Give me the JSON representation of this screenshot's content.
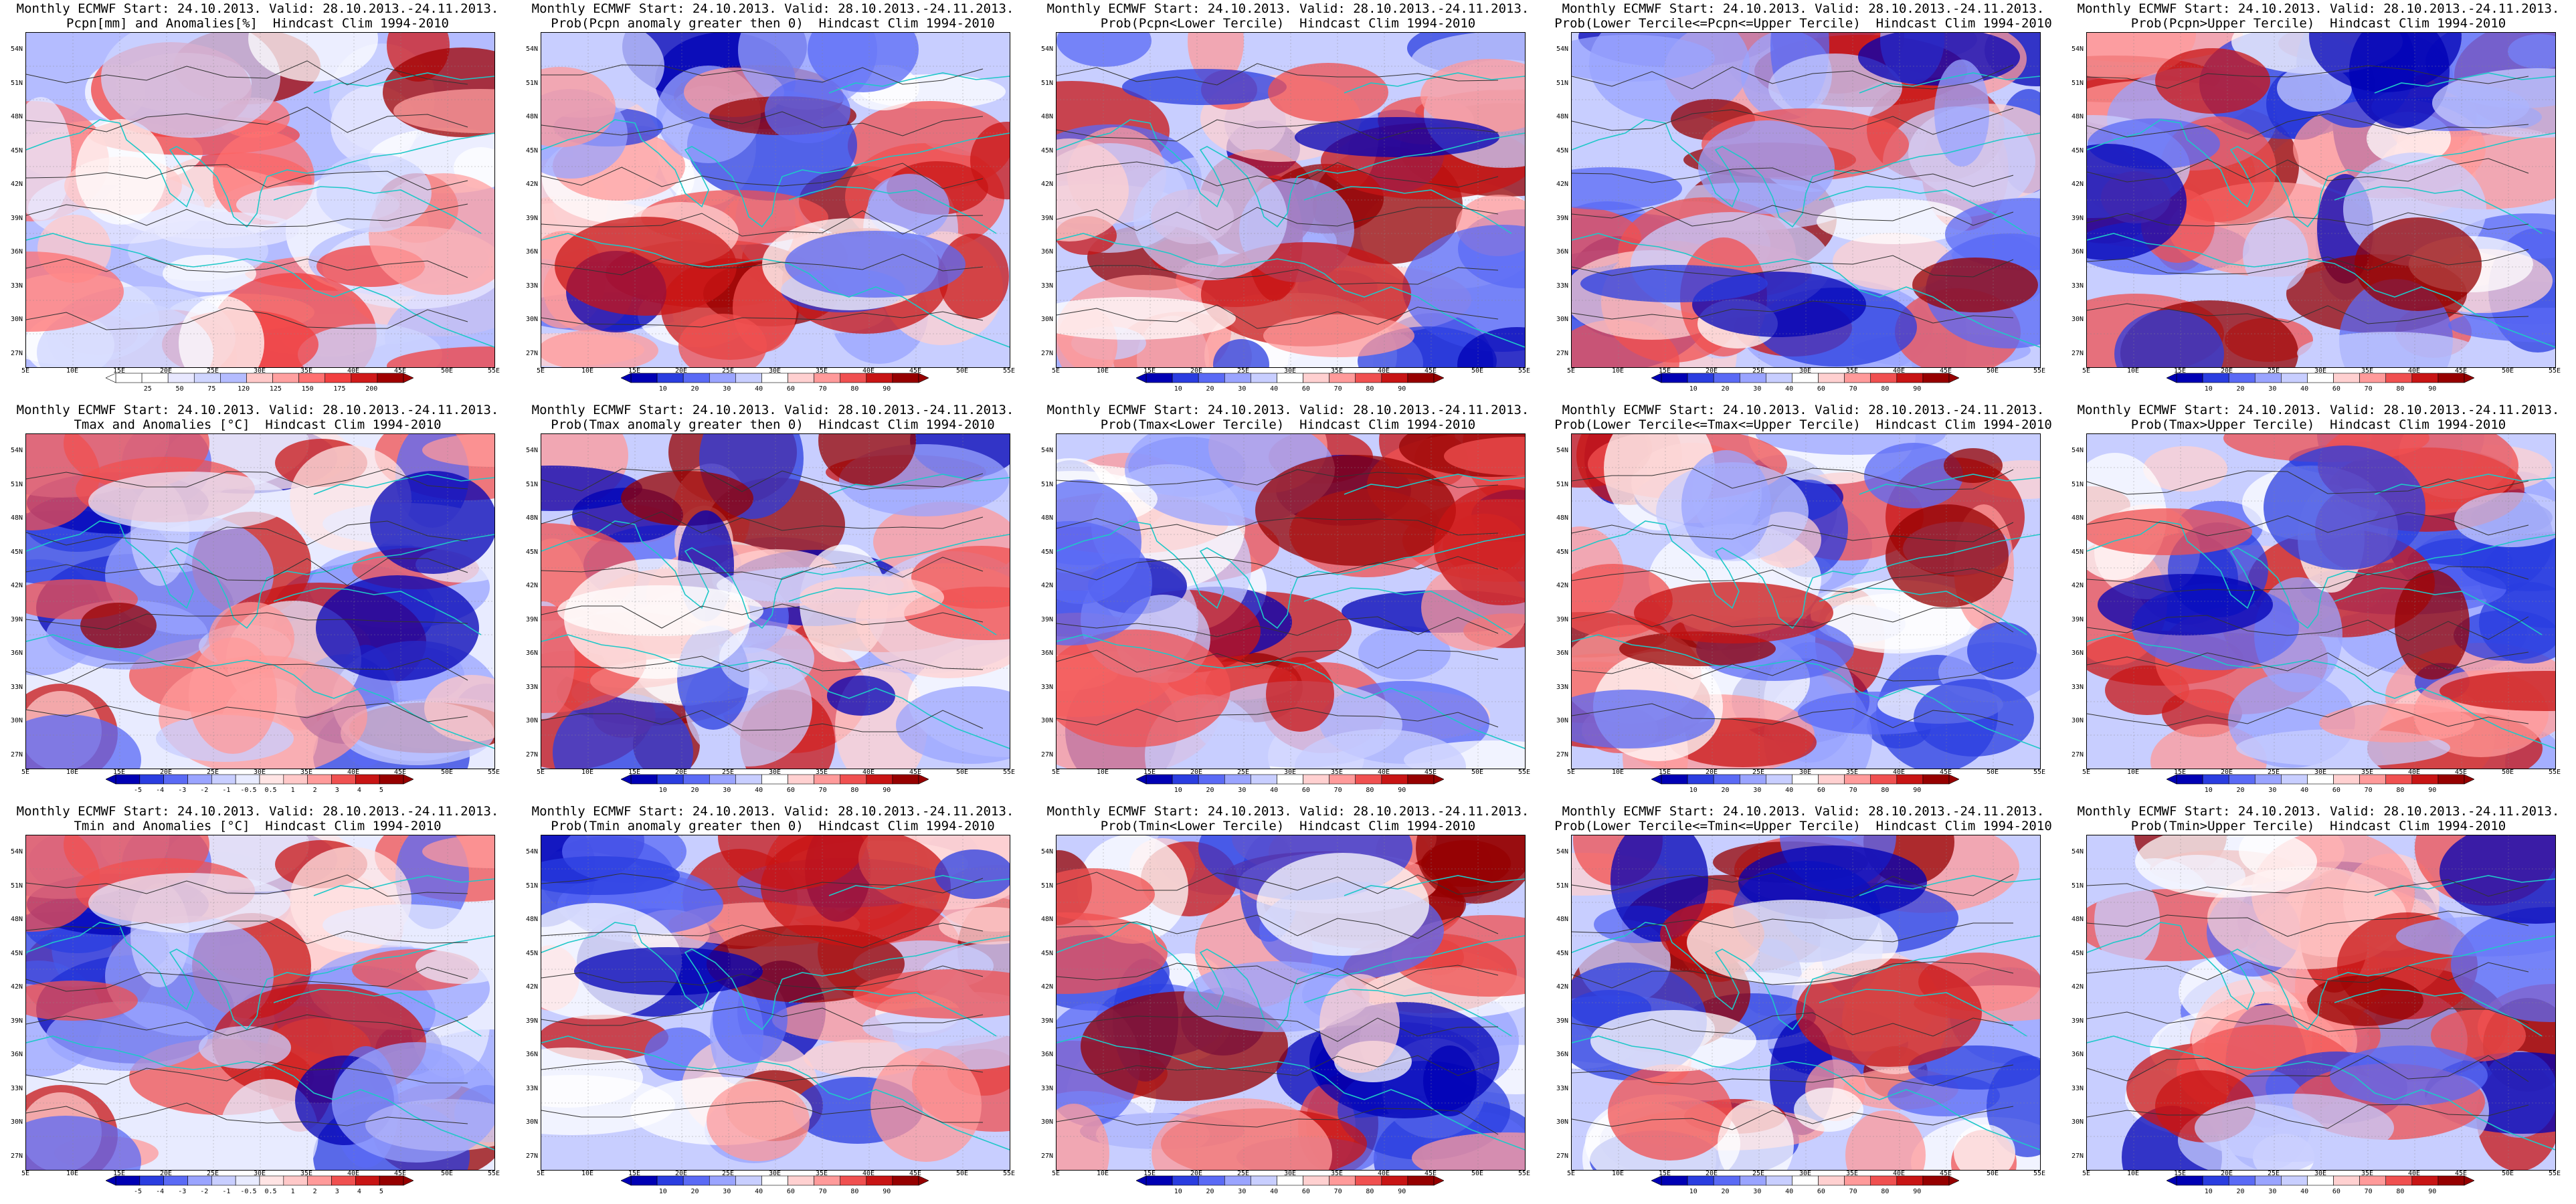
{
  "legend_colors": {
    "pcpn_anom": [
      "#ffffff",
      "#ffffff",
      "#e8e8ff",
      "#cfd5ff",
      "#b4bcff",
      "#ffc8c8",
      "#ffa0a0",
      "#ff7070",
      "#f24040",
      "#d01a1a",
      "#a00000"
    ],
    "prob": [
      "#0000b4",
      "#2a3de0",
      "#5a6af5",
      "#9aa4ff",
      "#c8ceff",
      "#ffffff",
      "#ffd0d0",
      "#ff9a9a",
      "#f05050",
      "#c81414",
      "#960000"
    ],
    "temp_anom": [
      "#0000b4",
      "#2a3de0",
      "#5a6af5",
      "#9aa4ff",
      "#c8ceff",
      "#e8ebff",
      "#ffe4e4",
      "#ffc8c8",
      "#ff9a9a",
      "#f05050",
      "#c81414",
      "#960000"
    ]
  },
  "axes": {
    "lat_labels": [
      "54N",
      "51N",
      "48N",
      "45N",
      "42N",
      "39N",
      "36N",
      "33N",
      "30N",
      "27N"
    ],
    "lon_labels": [
      "5E",
      "10E",
      "15E",
      "20E",
      "25E",
      "30E",
      "35E",
      "40E",
      "45E",
      "50E",
      "55E"
    ]
  },
  "panels": [
    {
      "line1": "Monthly ECMWF Start: 24.10.2013. Valid: 28.10.2013.-24.11.2013.",
      "line2": "Pcpn[mm] and Anomalies[%]",
      "line3": "Hindcast Clim 1994-2010",
      "scheme": "pcpn_anom",
      "ticks": [
        "25",
        "50",
        "75",
        "120",
        "125",
        "150",
        "175",
        "200"
      ]
    },
    {
      "line1": "Monthly ECMWF Start: 24.10.2013. Valid: 28.10.2013.-24.11.2013.",
      "line2": "Prob(Pcpn anomaly greater then 0)",
      "line3": "Hindcast Clim 1994-2010",
      "scheme": "prob",
      "ticks": [
        "10",
        "20",
        "30",
        "40",
        "60",
        "70",
        "80",
        "90"
      ]
    },
    {
      "line1": "Monthly ECMWF Start: 24.10.2013. Valid: 28.10.2013.-24.11.2013.",
      "line2": "Prob(Pcpn<Lower Tercile)",
      "line3": "Hindcast Clim 1994-2010",
      "scheme": "prob",
      "ticks": [
        "10",
        "20",
        "30",
        "40",
        "60",
        "70",
        "80",
        "90"
      ]
    },
    {
      "line1": "Monthly ECMWF Start: 24.10.2013. Valid: 28.10.2013.-24.11.2013.",
      "line2": "Prob(Lower Tercile<=Pcpn<=Upper Tercile)",
      "line3": "Hindcast Clim 1994-2010",
      "scheme": "prob",
      "ticks": [
        "10",
        "20",
        "30",
        "40",
        "60",
        "70",
        "80",
        "90"
      ]
    },
    {
      "line1": "Monthly ECMWF Start: 24.10.2013. Valid: 28.10.2013.-24.11.2013.",
      "line2": "Prob(Pcpn>Upper Tercile)",
      "line3": "Hindcast Clim 1994-2010",
      "scheme": "prob",
      "ticks": [
        "10",
        "20",
        "30",
        "40",
        "60",
        "70",
        "80",
        "90"
      ]
    },
    {
      "line1": "Monthly ECMWF Start: 24.10.2013. Valid: 28.10.2013.-24.11.2013.",
      "line2": "Tmax and Anomalies [°C]",
      "line3": "Hindcast Clim 1994-2010",
      "scheme": "temp_anom",
      "ticks": [
        "-5",
        "-4",
        "-3",
        "-2",
        "-1",
        "-0.5",
        "0.5",
        "1",
        "2",
        "3",
        "4",
        "5"
      ]
    },
    {
      "line1": "Monthly ECMWF Start: 24.10.2013. Valid: 28.10.2013.-24.11.2013.",
      "line2": "Prob(Tmax anomaly greater then 0)",
      "line3": "Hindcast Clim 1994-2010",
      "scheme": "prob",
      "ticks": [
        "10",
        "20",
        "30",
        "40",
        "60",
        "70",
        "80",
        "90"
      ]
    },
    {
      "line1": "Monthly ECMWF Start: 24.10.2013. Valid: 28.10.2013.-24.11.2013.",
      "line2": "Prob(Tmax<Lower Tercile)",
      "line3": "Hindcast Clim 1994-2010",
      "scheme": "prob",
      "ticks": [
        "10",
        "20",
        "30",
        "40",
        "60",
        "70",
        "80",
        "90"
      ]
    },
    {
      "line1": "Monthly ECMWF Start: 24.10.2013. Valid: 28.10.2013.-24.11.2013.",
      "line2": "Prob(Lower Tercile<=Tmax<=Upper Tercile)",
      "line3": "Hindcast Clim 1994-2010",
      "scheme": "prob",
      "ticks": [
        "10",
        "20",
        "30",
        "40",
        "60",
        "70",
        "80",
        "90"
      ]
    },
    {
      "line1": "Monthly ECMWF Start: 24.10.2013. Valid: 28.10.2013.-24.11.2013.",
      "line2": "Prob(Tmax>Upper Tercile)",
      "line3": "Hindcast Clim 1994-2010",
      "scheme": "prob",
      "ticks": [
        "10",
        "20",
        "30",
        "40",
        "60",
        "70",
        "80",
        "90"
      ]
    },
    {
      "line1": "Monthly ECMWF Start: 24.10.2013. Valid: 28.10.2013.-24.11.2013.",
      "line2": "Tmin and Anomalies [°C]",
      "line3": "Hindcast Clim 1994-2010",
      "scheme": "temp_anom",
      "ticks": [
        "-5",
        "-4",
        "-3",
        "-2",
        "-1",
        "-0.5",
        "0.5",
        "1",
        "2",
        "3",
        "4",
        "5"
      ]
    },
    {
      "line1": "Monthly ECMWF Start: 24.10.2013. Valid: 28.10.2013.-24.11.2013.",
      "line2": "Prob(Tmin anomaly greater then 0)",
      "line3": "Hindcast Clim 1994-2010",
      "scheme": "prob",
      "ticks": [
        "10",
        "20",
        "30",
        "40",
        "60",
        "70",
        "80",
        "90"
      ]
    },
    {
      "line1": "Monthly ECMWF Start: 24.10.2013. Valid: 28.10.2013.-24.11.2013.",
      "line2": "Prob(Tmin<Lower Tercile)",
      "line3": "Hindcast Clim 1994-2010",
      "scheme": "prob",
      "ticks": [
        "10",
        "20",
        "30",
        "40",
        "60",
        "70",
        "80",
        "90"
      ]
    },
    {
      "line1": "Monthly ECMWF Start: 24.10.2013. Valid: 28.10.2013.-24.11.2013.",
      "line2": "Prob(Lower Tercile<=Tmin<=Upper Tercile)",
      "line3": "Hindcast Clim 1994-2010",
      "scheme": "prob",
      "ticks": [
        "10",
        "20",
        "30",
        "40",
        "60",
        "70",
        "80",
        "90"
      ]
    },
    {
      "line1": "Monthly ECMWF Start: 24.10.2013. Valid: 28.10.2013.-24.11.2013.",
      "line2": "Prob(Tmin>Upper Tercile)",
      "line3": "Hindcast Clim 1994-2010",
      "scheme": "prob",
      "ticks": [
        "10",
        "20",
        "30",
        "40",
        "60",
        "70",
        "80",
        "90"
      ]
    }
  ]
}
